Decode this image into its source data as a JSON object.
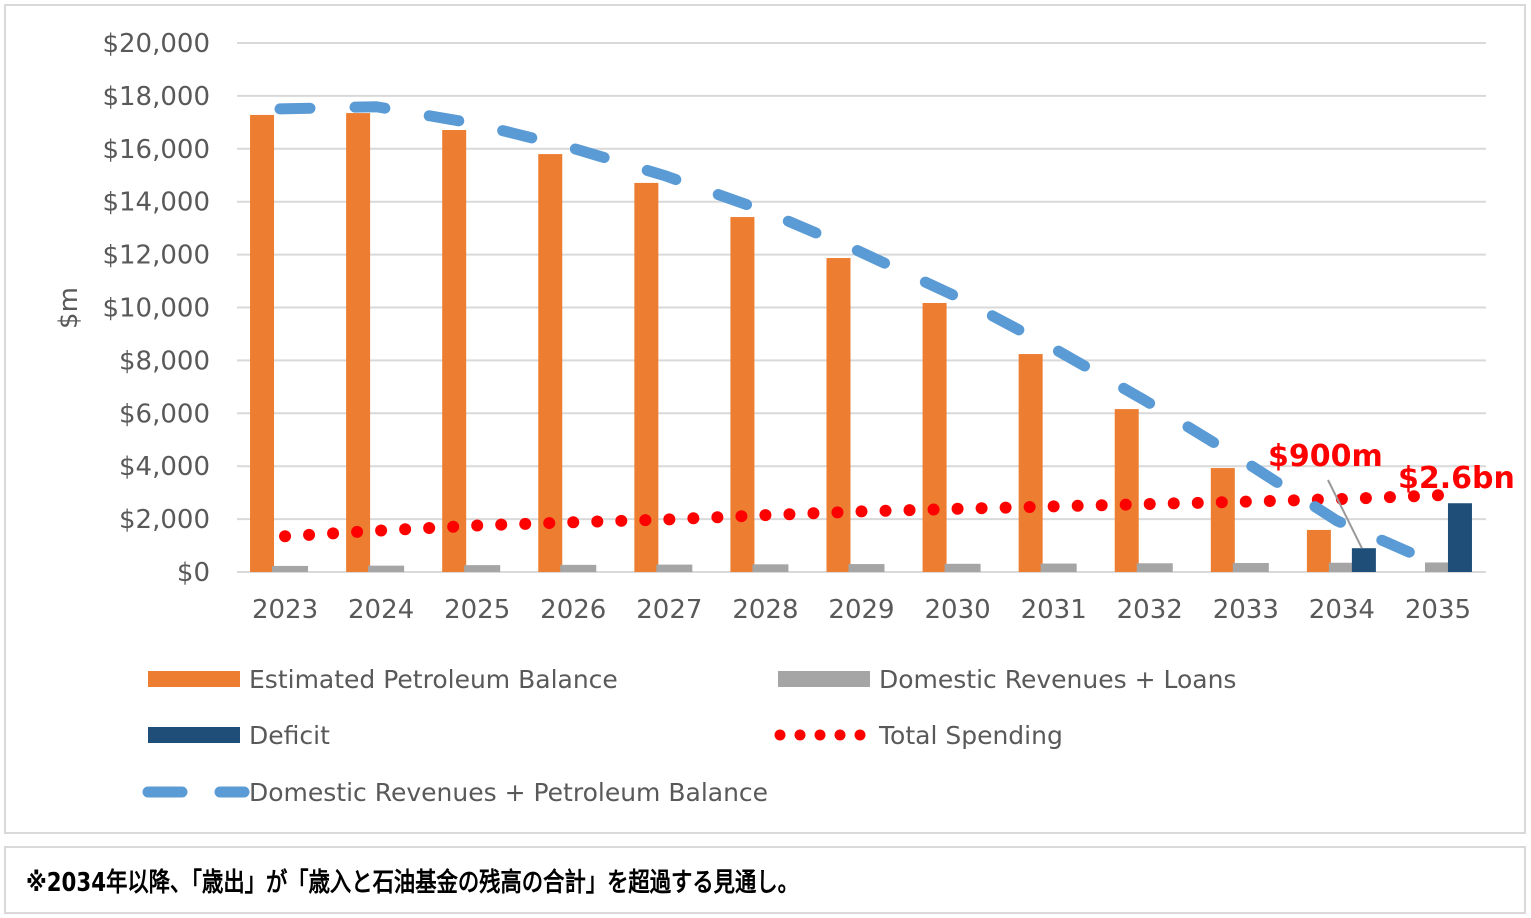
{
  "chart_data": {
    "type": "bar",
    "title": "",
    "xlabel": "",
    "ylabel": "$m",
    "ylim": [
      0,
      20000
    ],
    "ytick_step": 2000,
    "ytick_labels": [
      "$0",
      "$2,000",
      "$4,000",
      "$6,000",
      "$8,000",
      "$10,000",
      "$12,000",
      "$14,000",
      "$16,000",
      "$18,000",
      "$20,000"
    ],
    "grid": true,
    "legend_position": "bottom",
    "categories": [
      "2023",
      "2024",
      "2025",
      "2026",
      "2027",
      "2028",
      "2029",
      "2030",
      "2031",
      "2032",
      "2033",
      "2034",
      "2035"
    ],
    "series": [
      {
        "name": "Estimated Petroleum Balance",
        "kind": "bar",
        "color": "#ED7D31",
        "values": [
          17280,
          17350,
          16710,
          15800,
          14710,
          13420,
          11870,
          10170,
          8240,
          6160,
          3930,
          1590,
          0
        ]
      },
      {
        "name": "Domestic Revenues + Loans",
        "kind": "bar",
        "color": "#A5A5A5",
        "values": [
          230,
          240,
          260,
          270,
          280,
          290,
          300,
          310,
          320,
          330,
          340,
          350,
          360
        ]
      },
      {
        "name": "Deficit",
        "kind": "bar",
        "color": "#1F4E79",
        "values": [
          0,
          0,
          0,
          0,
          0,
          0,
          0,
          0,
          0,
          0,
          0,
          900,
          2600
        ]
      },
      {
        "name": "Total Spending",
        "kind": "line-dotted",
        "color": "#FF0000",
        "values": [
          1350,
          1570,
          1760,
          1880,
          1990,
          2150,
          2290,
          2390,
          2480,
          2570,
          2660,
          2760,
          2900
        ]
      },
      {
        "name": "Domestic Revenues + Petroleum Balance",
        "kind": "line-dashed",
        "color": "#5B9BD5",
        "values": [
          17510,
          17590,
          16970,
          16070,
          14990,
          13710,
          12170,
          10480,
          8560,
          6490,
          4270,
          1940,
          360
        ]
      }
    ],
    "annotations": [
      {
        "text": "$900m",
        "category": "2034",
        "value": 900
      },
      {
        "text": "$2.6bn",
        "category": "2035",
        "value": 2600
      }
    ]
  },
  "legend": [
    {
      "label": "Estimated Petroleum Balance",
      "swatch": "bar",
      "color": "#ED7D31"
    },
    {
      "label": "Domestic Revenues + Loans",
      "swatch": "bar",
      "color": "#A5A5A5"
    },
    {
      "label": "Deficit",
      "swatch": "bar",
      "color": "#1F4E79"
    },
    {
      "label": "Total Spending",
      "swatch": "dots",
      "color": "#FF0000"
    },
    {
      "label": "Domestic Revenues + Petroleum Balance",
      "swatch": "dash",
      "color": "#5B9BD5"
    }
  ],
  "note": "※2034年以降、「歳出」が「歳入と石油基金の残高の合計」を超過する見通し。"
}
